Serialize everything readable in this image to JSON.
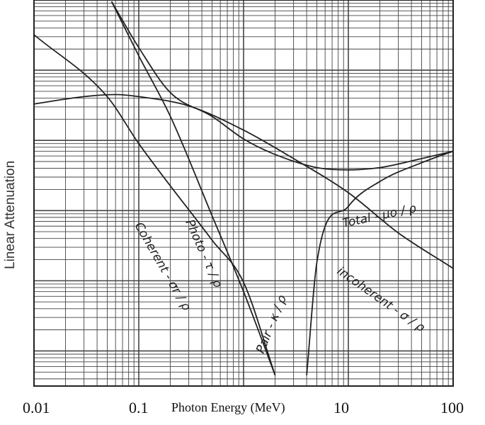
{
  "chart_data": {
    "type": "line",
    "xlabel": "Photon Energy (MeV)",
    "ylabel": "Linear Attenuation",
    "x_scale": "log",
    "y_scale": "log",
    "xlim": [
      0.01,
      100
    ],
    "grid": true,
    "tick_labels": [
      "0.01",
      "0.1",
      "10",
      "100"
    ],
    "series": [
      {
        "name": "Total - μo / ρ",
        "points": [
          [
            0.055,
            9.5
          ],
          [
            0.1,
            2.1
          ],
          [
            0.2,
            0.48
          ],
          [
            0.5,
            0.22
          ],
          [
            1,
            0.105
          ],
          [
            2,
            0.063
          ],
          [
            5,
            0.041
          ],
          [
            10,
            0.038
          ],
          [
            20,
            0.041
          ],
          [
            50,
            0.055
          ],
          [
            100,
            0.07
          ]
        ]
      },
      {
        "name": "Photo - τ / ρ",
        "points": [
          [
            0.055,
            9.5
          ],
          [
            0.1,
            1.6
          ],
          [
            0.2,
            0.22
          ],
          [
            0.5,
            0.0085
          ],
          [
            1,
            0.0007
          ],
          [
            2,
            4.5e-05
          ]
        ]
      },
      {
        "name": "Coherent - σr / ρ",
        "points": [
          [
            0.01,
            3.2
          ],
          [
            0.05,
            0.42
          ],
          [
            0.1,
            0.09
          ],
          [
            0.5,
            0.0038
          ],
          [
            1,
            0.00095
          ],
          [
            2,
            4.5e-05
          ]
        ]
      },
      {
        "name": "incoherent - σ / ρ",
        "points": [
          [
            0.01,
            0.33
          ],
          [
            0.03,
            0.42
          ],
          [
            0.06,
            0.45
          ],
          [
            0.1,
            0.42
          ],
          [
            0.3,
            0.31
          ],
          [
            1,
            0.14
          ],
          [
            3,
            0.055
          ],
          [
            10,
            0.018
          ],
          [
            30,
            0.0048
          ],
          [
            100,
            0.0015
          ]
        ]
      },
      {
        "name": "Pair - κ / ρ",
        "points": [
          [
            4,
            4.5e-05
          ],
          [
            5,
            0.0018
          ],
          [
            10,
            0.0115
          ],
          [
            20,
            0.026
          ],
          [
            50,
            0.048
          ],
          [
            100,
            0.07
          ]
        ]
      }
    ],
    "series_labels": [
      {
        "text": "Total - μo / ρ"
      },
      {
        "text": "Photo - τ / ρ"
      },
      {
        "text": "Coherent - σr / ρ"
      },
      {
        "text": "incoherent - σ / ρ"
      },
      {
        "text": "Pair - κ / ρ"
      }
    ]
  }
}
